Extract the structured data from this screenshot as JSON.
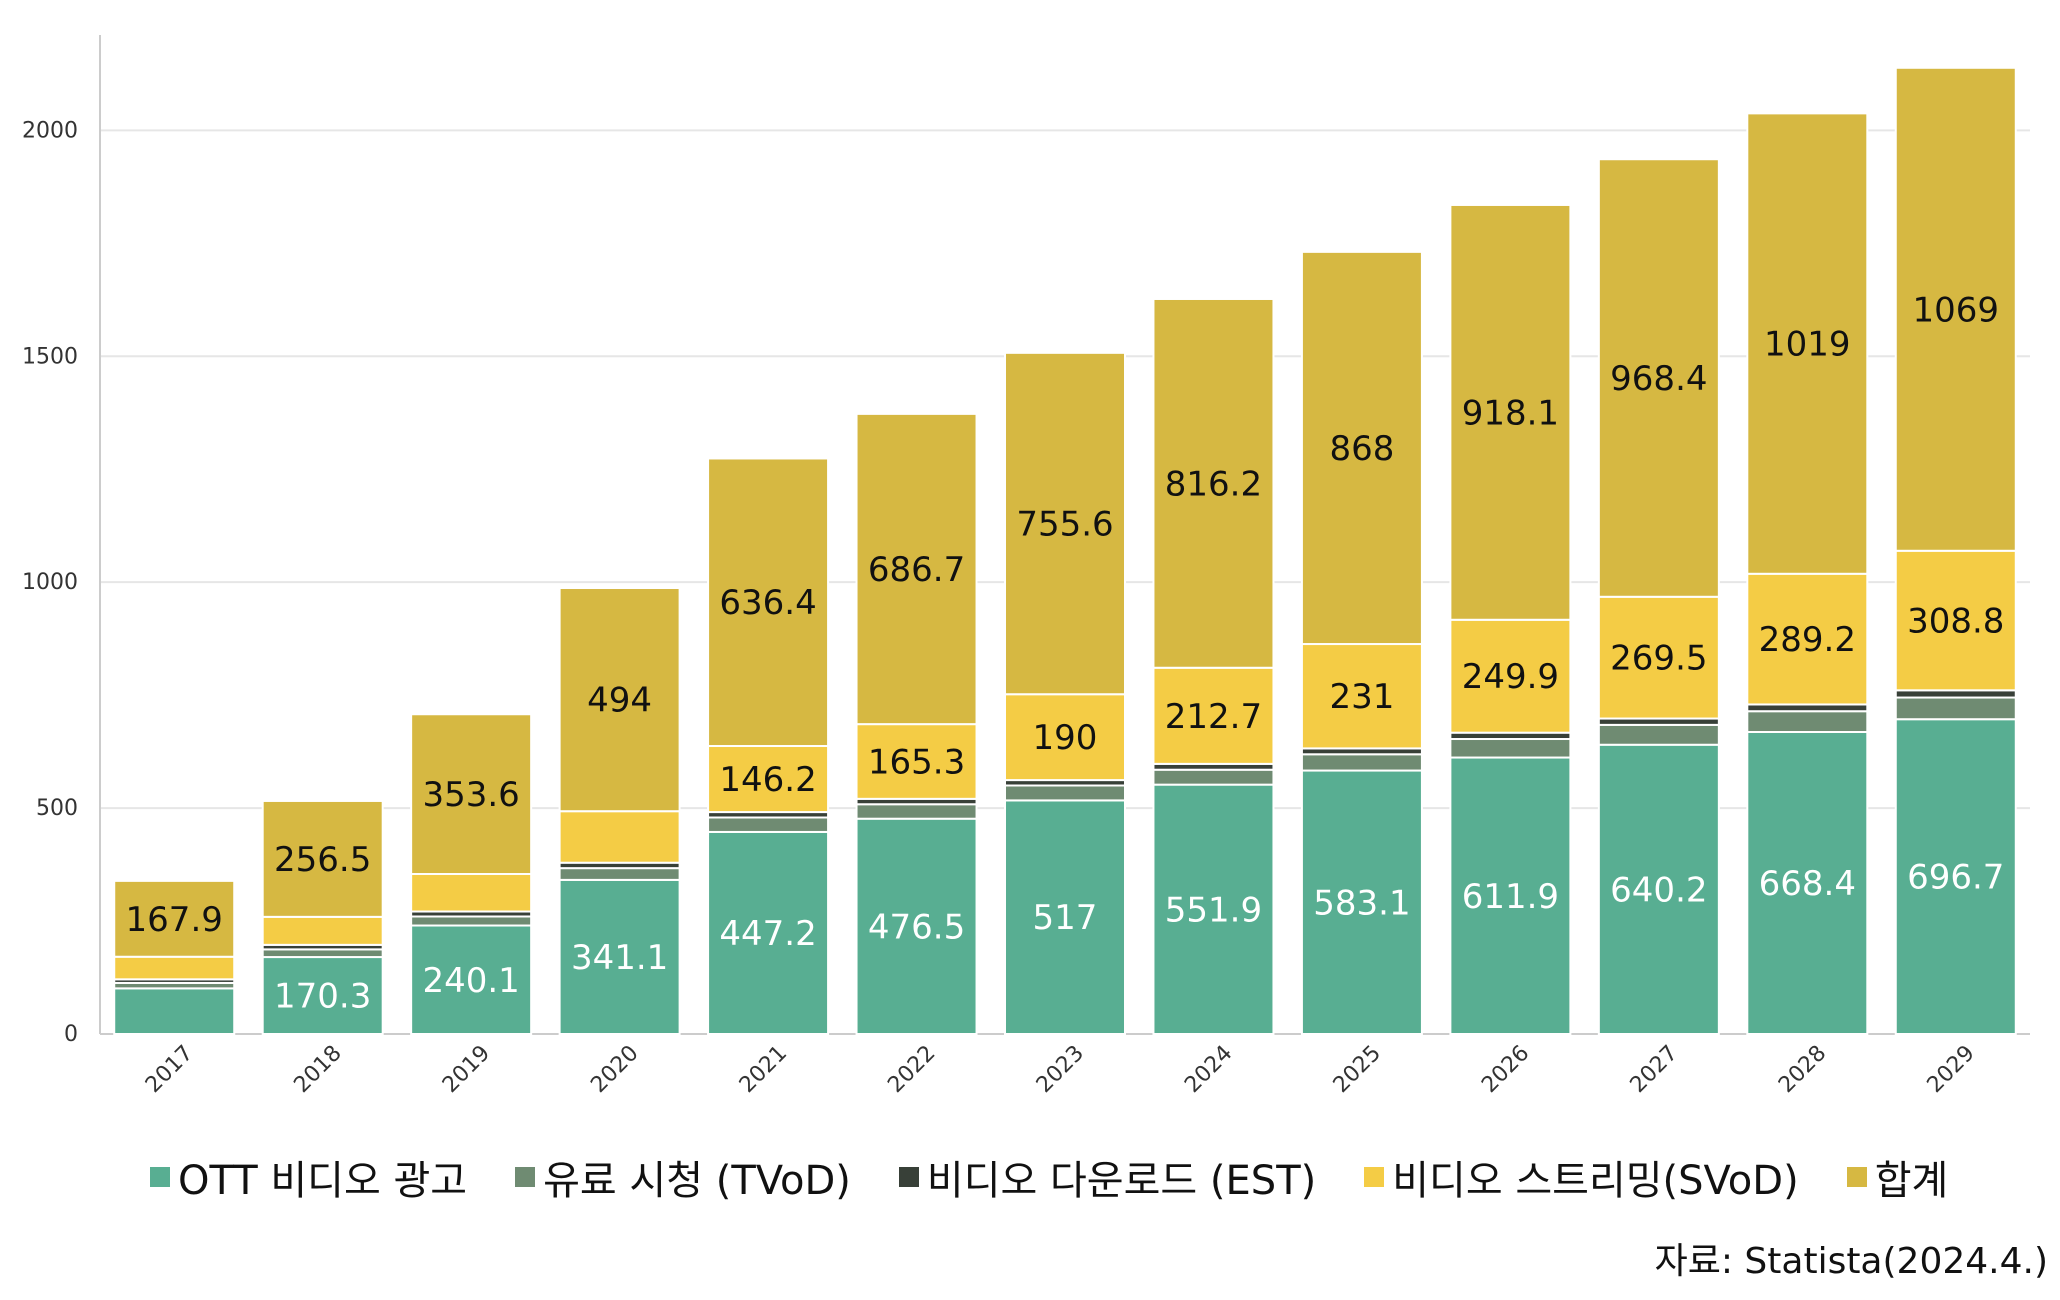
{
  "chart_data": {
    "type": "bar",
    "stacked": true,
    "categories": [
      "2017",
      "2018",
      "2019",
      "2020",
      "2021",
      "2022",
      "2023",
      "2024",
      "2025",
      "2026",
      "2027",
      "2028",
      "2029"
    ],
    "ylim": [
      0,
      2200
    ],
    "yticks": [
      0,
      500,
      1000,
      1500,
      2000
    ],
    "grid": true,
    "legend_position": "bottom",
    "series": [
      {
        "name": "OTT 비디오 광고",
        "color": "#58ae92",
        "values": [
          101,
          170.3,
          240.1,
          341.1,
          447.2,
          476.5,
          517,
          551.9,
          583.1,
          611.9,
          640.2,
          668.4,
          696.7
        ],
        "labels": [
          "",
          "170.3",
          "240.1",
          "341.1",
          "447.2",
          "476.5",
          "517",
          "551.9",
          "583.1",
          "611.9",
          "640.2",
          "668.4",
          "696.7"
        ]
      },
      {
        "name": "유료 시청 (TVoD)",
        "color": "#6f8b72",
        "values": [
          12,
          17,
          20,
          26,
          32,
          32,
          33,
          33,
          36,
          41,
          44,
          46,
          48
        ],
        "labels": [
          "",
          "",
          "",
          "",
          "",
          "",
          "",
          "",
          "",
          "",
          "",
          "",
          ""
        ]
      },
      {
        "name": "비디오 다운로드 (EST)",
        "color": "#384038",
        "values": [
          8,
          10,
          11,
          12,
          12,
          12,
          12,
          13,
          13,
          14,
          14,
          15,
          16
        ],
        "labels": [
          "",
          "",
          "",
          "",
          "",
          "",
          "",
          "",
          "",
          "",
          "",
          "",
          ""
        ]
      },
      {
        "name": "비디오 스트리밍(SVoD)",
        "color": "#f4cc45",
        "values": [
          50,
          62,
          83,
          114,
          146.2,
          165.3,
          190,
          212.7,
          231,
          249.9,
          269.5,
          289.2,
          308.8
        ],
        "labels": [
          "",
          "",
          "",
          "",
          "146.2",
          "165.3",
          "190",
          "212.7",
          "231",
          "249.9",
          "269.5",
          "289.2",
          "308.8"
        ]
      },
      {
        "name": "합계",
        "color": "#d6b842",
        "values": [
          167.9,
          256.5,
          353.6,
          494,
          636.4,
          686.7,
          755.6,
          816.2,
          868,
          918.1,
          968.4,
          1019,
          1069
        ],
        "labels": [
          "167.9",
          "256.5",
          "353.6",
          "494",
          "636.4",
          "686.7",
          "755.6",
          "816.2",
          "868",
          "918.1",
          "968.4",
          "1019",
          "1069"
        ]
      }
    ]
  },
  "source_text": "자료: Statista(2024.4.)"
}
